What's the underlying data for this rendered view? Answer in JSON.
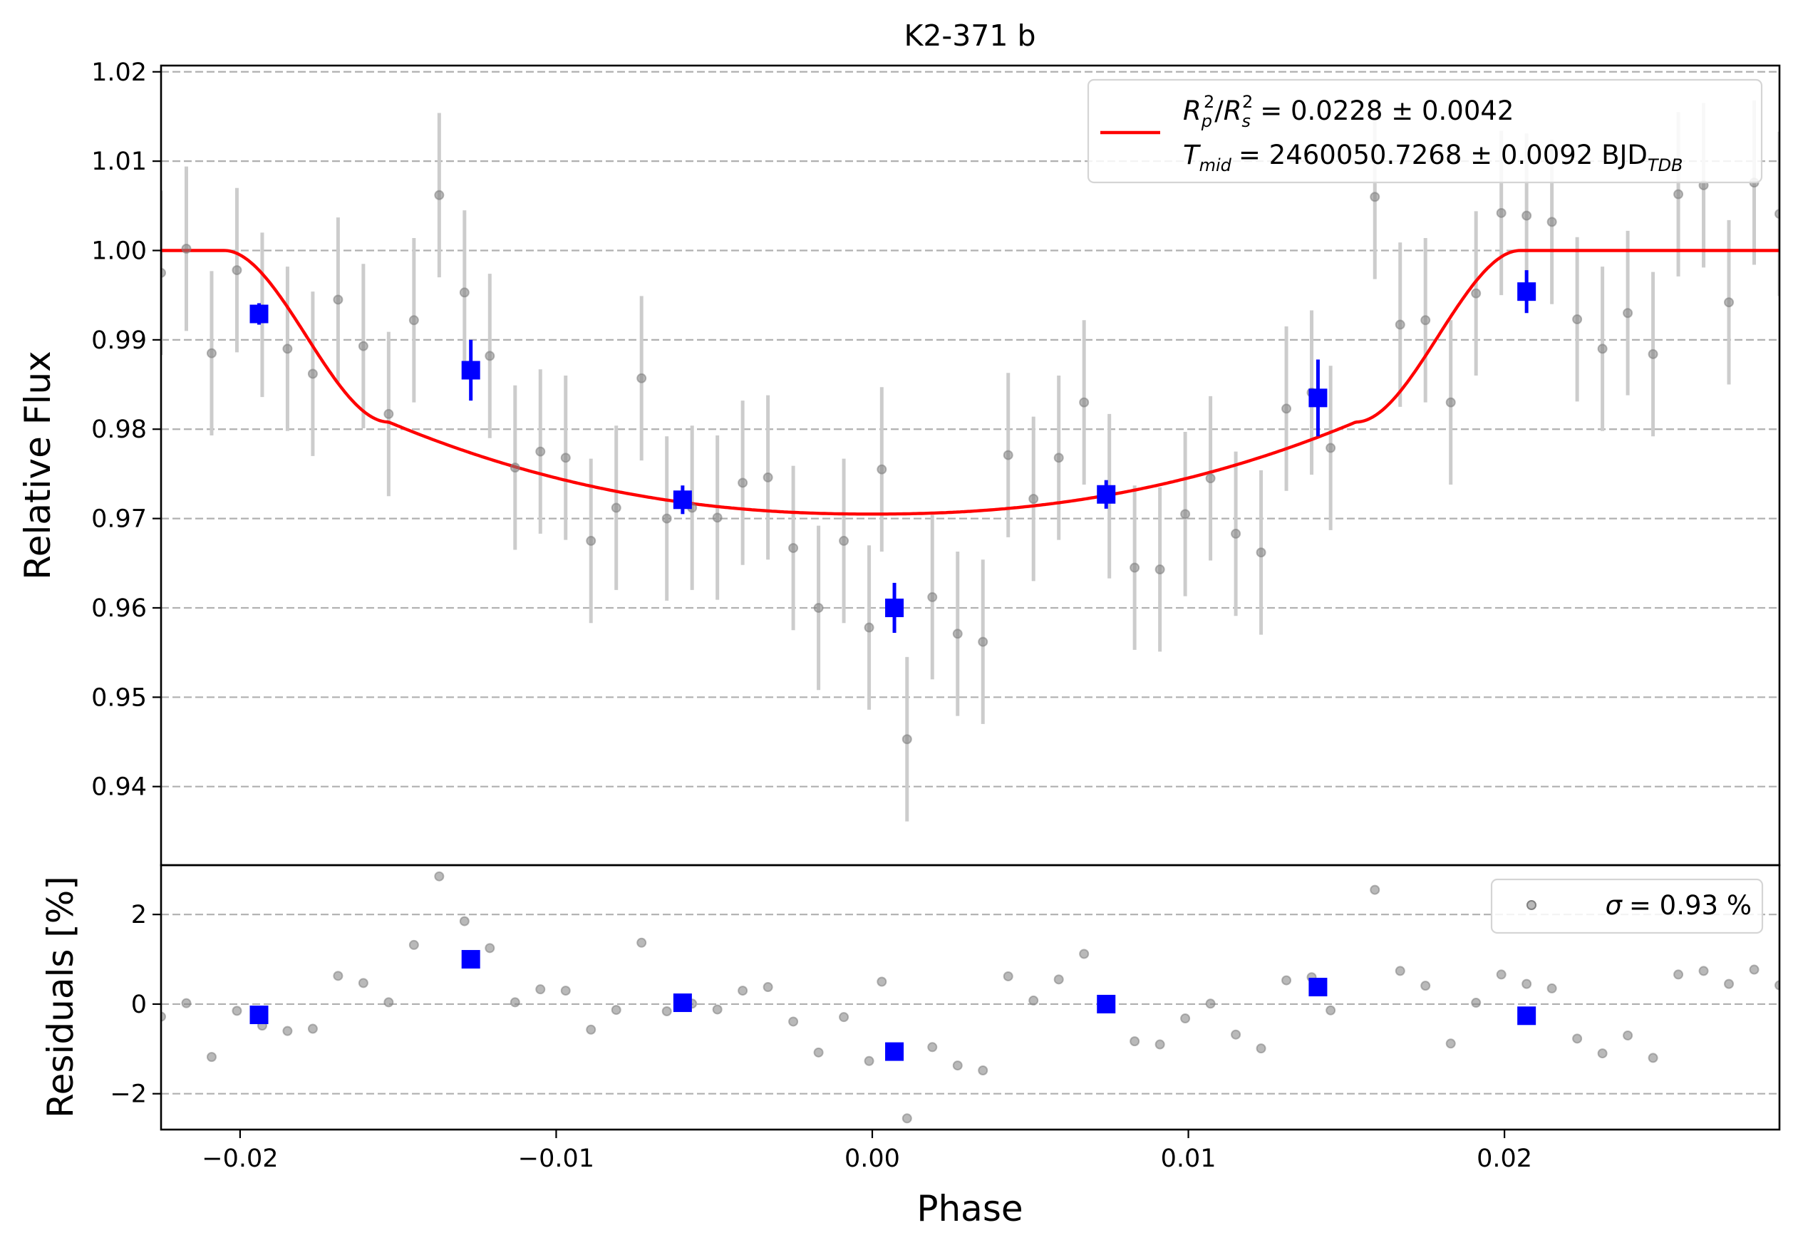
{
  "chart_data": {
    "type": "scatter",
    "title": "K2-371 b",
    "xlabel": "Phase",
    "xlim": [
      -0.0225,
      0.0287
    ],
    "x_ticks": [
      "−0.02",
      "−0.01",
      "0.00",
      "0.01",
      "0.02"
    ],
    "x_tick_values": [
      -0.02,
      -0.01,
      0.0,
      0.01,
      0.02
    ],
    "grid": "horizontal dashed",
    "colors": {
      "model": "#ff0000",
      "binned": "#0000ff",
      "raw": "#808080",
      "raw_errorbar": "#cccccc",
      "grid": "#b0b0b0"
    },
    "top_panel": {
      "ylabel": "Relative Flux",
      "ylim": [
        0.9312,
        1.0207
      ],
      "y_ticks": [
        "0.94",
        "0.95",
        "0.96",
        "0.97",
        "0.98",
        "0.99",
        "1.00",
        "1.01",
        "1.02"
      ],
      "y_tick_values": [
        0.94,
        0.95,
        0.96,
        0.97,
        0.98,
        0.99,
        1.0,
        1.01,
        1.02
      ],
      "legend_position": "top-right",
      "legend": {
        "rp_rs_label": "= 0.0228 ± 0.0042",
        "tmid_label": "= 2460050.7268 ± 0.0092 BJD"
      },
      "model": {
        "name": "transit model",
        "rp2_rs2": 0.0228,
        "t1": -0.0205,
        "t2": -0.0153,
        "t3": 0.0153,
        "t4": 0.0205,
        "center": 0.0,
        "depth_center": 0.0295,
        "depth_at_t2": 0.0192
      },
      "raw": {
        "x": [
          -0.0225,
          -0.0217,
          -0.0209,
          -0.0201,
          -0.0193,
          -0.0185,
          -0.0177,
          -0.0169,
          -0.0161,
          -0.0153,
          -0.0145,
          -0.0137,
          -0.0129,
          -0.0121,
          -0.0113,
          -0.0105,
          -0.0097,
          -0.0089,
          -0.0081,
          -0.0073,
          -0.0065,
          -0.0057,
          -0.0049,
          -0.0041,
          -0.0033,
          -0.0025,
          -0.0017,
          -0.0009,
          -0.0001,
          0.0003,
          0.0011,
          0.0019,
          0.0027,
          0.0035,
          0.0043,
          0.0051,
          0.0059,
          0.0067,
          0.0075,
          0.0083,
          0.0091,
          0.0099,
          0.0107,
          0.0115,
          0.0123,
          0.0131,
          0.0139,
          0.0145,
          0.0159,
          0.0167,
          0.0175,
          0.0183,
          0.0191,
          0.0199,
          0.0207,
          0.0215,
          0.0223,
          0.0231,
          0.0239,
          0.0247,
          0.0255,
          0.0263,
          0.0271,
          0.0279,
          0.0287
        ],
        "y": [
          0.9975,
          1.0002,
          0.9885,
          0.9978,
          0.9928,
          0.989,
          0.9862,
          0.9945,
          0.9893,
          0.9817,
          0.9922,
          1.0062,
          0.9953,
          0.9882,
          0.9757,
          0.9775,
          0.9768,
          0.9675,
          0.9712,
          0.9857,
          0.97,
          0.9712,
          0.9701,
          0.974,
          0.9746,
          0.9667,
          0.96,
          0.9675,
          0.9578,
          0.9755,
          0.9453,
          0.9612,
          0.9571,
          0.9562,
          0.9771,
          0.9722,
          0.9768,
          0.983,
          0.9725,
          0.9645,
          0.9643,
          0.9705,
          0.9745,
          0.9683,
          0.9662,
          0.9823,
          0.9841,
          0.9779,
          1.006,
          0.9917,
          0.9922,
          0.983,
          0.9952,
          1.0042,
          1.0039,
          1.0032,
          0.9923,
          0.989,
          0.993,
          0.9884,
          1.0063,
          1.0073,
          0.9942,
          1.0076,
          1.0041
        ],
        "yerr": 0.0092
      },
      "binned": {
        "x": [
          -0.0194,
          -0.0127,
          -0.006,
          0.0007,
          0.0074,
          0.0141,
          0.0207
        ],
        "y": [
          0.9929,
          0.9866,
          0.9721,
          0.96,
          0.9727,
          0.9835,
          0.9954
        ],
        "yerr": [
          0.0012,
          0.0034,
          0.0016,
          0.0028,
          0.0016,
          0.0043,
          0.0024
        ]
      }
    },
    "bottom_panel": {
      "ylabel": "Residuals [%]",
      "ylim": [
        -2.8,
        3.1
      ],
      "y_ticks": [
        "−2",
        "0",
        "2"
      ],
      "y_tick_values": [
        -2,
        0,
        2
      ],
      "legend_position": "top-right",
      "legend": {
        "sigma_label": "= 0.93 %"
      },
      "raw": {
        "y": [
          -0.28,
          0.02,
          -1.18,
          -0.15,
          -0.48,
          -0.6,
          -0.55,
          0.63,
          0.47,
          0.04,
          1.32,
          2.85,
          1.85,
          1.25,
          0.04,
          0.33,
          0.3,
          -0.57,
          -0.13,
          1.37,
          -0.16,
          0.01,
          -0.12,
          0.3,
          0.38,
          -0.39,
          -1.08,
          -0.29,
          -1.27,
          0.5,
          -2.55,
          -0.96,
          -1.37,
          -1.48,
          0.62,
          0.08,
          0.55,
          1.12,
          0.0,
          -0.83,
          -0.9,
          -0.32,
          0.01,
          -0.68,
          -0.99,
          0.53,
          0.6,
          -0.14,
          2.55,
          0.74,
          0.41,
          -0.88,
          0.03,
          0.66,
          0.45,
          0.35,
          -0.77,
          -1.1,
          -0.7,
          -1.2,
          0.66,
          0.74,
          0.45,
          0.77,
          0.42
        ]
      },
      "binned": {
        "y": [
          -0.24,
          1.0,
          0.03,
          -1.06,
          0.0,
          0.38,
          -0.26
        ]
      }
    }
  }
}
